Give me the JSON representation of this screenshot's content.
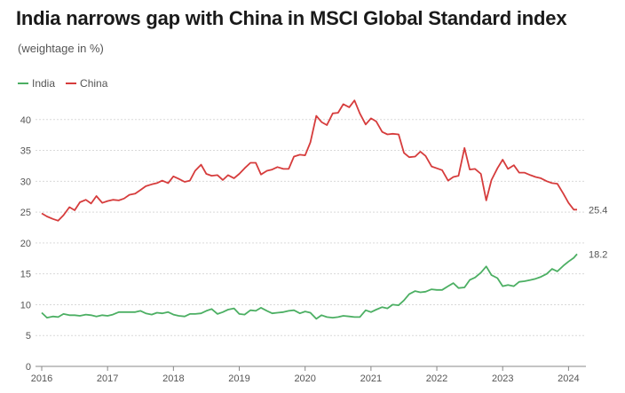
{
  "title": "India narrows gap with China in MSCI Global Standard index",
  "subtitle": "(weightage in %)",
  "chart_data": {
    "type": "line",
    "title": "India narrows gap with China in MSCI Global Standard index",
    "subtitle": "(weightage in %)",
    "xlabel": "",
    "ylabel": "",
    "ylim": [
      0,
      45
    ],
    "yticks": [
      0,
      5,
      10,
      15,
      20,
      25,
      30,
      35,
      40
    ],
    "xlim": [
      2016,
      2024.17
    ],
    "xticks": [
      "2016",
      "2017",
      "2018",
      "2019",
      "2020",
      "2021",
      "2022",
      "2023",
      "2024"
    ],
    "grid": "horizontal",
    "legend_position": "top-left",
    "series": [
      {
        "name": "India",
        "color": "#4caf63",
        "end_label": "18.2",
        "x": [
          2016.0,
          2016.08,
          2016.17,
          2016.25,
          2016.33,
          2016.42,
          2016.5,
          2016.58,
          2016.67,
          2016.75,
          2016.83,
          2016.92,
          2017.0,
          2017.08,
          2017.17,
          2017.25,
          2017.33,
          2017.42,
          2017.5,
          2017.58,
          2017.67,
          2017.75,
          2017.83,
          2017.92,
          2018.0,
          2018.08,
          2018.17,
          2018.25,
          2018.33,
          2018.42,
          2018.5,
          2018.58,
          2018.67,
          2018.75,
          2018.83,
          2018.92,
          2019.0,
          2019.08,
          2019.17,
          2019.25,
          2019.33,
          2019.42,
          2019.5,
          2019.58,
          2019.67,
          2019.75,
          2019.83,
          2019.92,
          2020.0,
          2020.08,
          2020.17,
          2020.25,
          2020.33,
          2020.42,
          2020.5,
          2020.58,
          2020.67,
          2020.75,
          2020.83,
          2020.92,
          2021.0,
          2021.08,
          2021.17,
          2021.25,
          2021.33,
          2021.42,
          2021.5,
          2021.58,
          2021.67,
          2021.75,
          2021.83,
          2021.92,
          2022.0,
          2022.08,
          2022.17,
          2022.25,
          2022.33,
          2022.42,
          2022.5,
          2022.58,
          2022.67,
          2022.75,
          2022.83,
          2022.92,
          2023.0,
          2023.08,
          2023.17,
          2023.25,
          2023.33,
          2023.42,
          2023.5,
          2023.58,
          2023.67,
          2023.75,
          2023.83,
          2023.92,
          2024.0,
          2024.08,
          2024.13
        ],
        "values": [
          8.7,
          7.9,
          8.1,
          8.0,
          8.5,
          8.3,
          8.3,
          8.2,
          8.4,
          8.3,
          8.1,
          8.3,
          8.2,
          8.4,
          8.8,
          8.8,
          8.8,
          8.8,
          9.0,
          8.6,
          8.4,
          8.7,
          8.6,
          8.8,
          8.4,
          8.2,
          8.1,
          8.5,
          8.5,
          8.6,
          9.0,
          9.3,
          8.5,
          8.8,
          9.2,
          9.4,
          8.5,
          8.4,
          9.1,
          9.0,
          9.5,
          9.0,
          8.6,
          8.7,
          8.8,
          9.0,
          9.1,
          8.6,
          8.9,
          8.7,
          7.7,
          8.3,
          8.0,
          7.9,
          8.0,
          8.2,
          8.1,
          8.0,
          8.0,
          9.1,
          8.8,
          9.2,
          9.6,
          9.4,
          10.0,
          9.9,
          10.7,
          11.7,
          12.2,
          12.0,
          12.1,
          12.5,
          12.4,
          12.4,
          13.0,
          13.5,
          12.7,
          12.8,
          14.0,
          14.4,
          15.2,
          16.2,
          14.8,
          14.3,
          13.0,
          13.2,
          13.0,
          13.7,
          13.8,
          14.0,
          14.2,
          14.5,
          15.0,
          15.8,
          15.4,
          16.3,
          17.0,
          17.6,
          18.2
        ]
      },
      {
        "name": "China",
        "color": "#d63c3c",
        "end_label": "25.4",
        "x": [
          2016.0,
          2016.08,
          2016.17,
          2016.25,
          2016.33,
          2016.42,
          2016.5,
          2016.58,
          2016.67,
          2016.75,
          2016.83,
          2016.92,
          2017.0,
          2017.08,
          2017.17,
          2017.25,
          2017.33,
          2017.42,
          2017.5,
          2017.58,
          2017.67,
          2017.75,
          2017.83,
          2017.92,
          2018.0,
          2018.08,
          2018.17,
          2018.25,
          2018.33,
          2018.42,
          2018.5,
          2018.58,
          2018.67,
          2018.75,
          2018.83,
          2018.92,
          2019.0,
          2019.08,
          2019.17,
          2019.25,
          2019.33,
          2019.42,
          2019.5,
          2019.58,
          2019.67,
          2019.75,
          2019.83,
          2019.92,
          2020.0,
          2020.08,
          2020.17,
          2020.25,
          2020.33,
          2020.42,
          2020.5,
          2020.58,
          2020.67,
          2020.75,
          2020.83,
          2020.92,
          2021.0,
          2021.08,
          2021.17,
          2021.25,
          2021.33,
          2021.42,
          2021.5,
          2021.58,
          2021.67,
          2021.75,
          2021.83,
          2021.92,
          2022.0,
          2022.08,
          2022.17,
          2022.25,
          2022.33,
          2022.42,
          2022.5,
          2022.58,
          2022.67,
          2022.75,
          2022.83,
          2022.92,
          2023.0,
          2023.08,
          2023.17,
          2023.25,
          2023.33,
          2023.42,
          2023.5,
          2023.58,
          2023.67,
          2023.75,
          2023.83,
          2023.92,
          2024.0,
          2024.08,
          2024.13
        ],
        "values": [
          24.8,
          24.3,
          23.9,
          23.6,
          24.5,
          25.8,
          25.3,
          26.6,
          27.0,
          26.4,
          27.6,
          26.5,
          26.8,
          27.0,
          26.9,
          27.2,
          27.8,
          28.0,
          28.6,
          29.2,
          29.5,
          29.7,
          30.1,
          29.7,
          30.8,
          30.4,
          29.9,
          30.1,
          31.7,
          32.7,
          31.2,
          30.9,
          31.0,
          30.2,
          31.0,
          30.5,
          31.2,
          32.1,
          33.0,
          33.0,
          31.1,
          31.7,
          31.9,
          32.3,
          32.0,
          32.0,
          34.0,
          34.3,
          34.2,
          36.3,
          40.6,
          39.6,
          39.1,
          41.0,
          41.1,
          42.5,
          42.0,
          43.1,
          41.0,
          39.2,
          40.2,
          39.7,
          38.0,
          37.6,
          37.7,
          37.6,
          34.6,
          33.9,
          34.0,
          34.8,
          34.1,
          32.4,
          32.1,
          31.8,
          30.1,
          30.7,
          30.9,
          35.4,
          31.9,
          32.0,
          31.2,
          26.9,
          30.2,
          32.1,
          33.5,
          32.0,
          32.6,
          31.4,
          31.4,
          31.0,
          30.7,
          30.5,
          30.0,
          29.7,
          29.6,
          28.0,
          26.5,
          25.4,
          25.4
        ]
      }
    ]
  }
}
